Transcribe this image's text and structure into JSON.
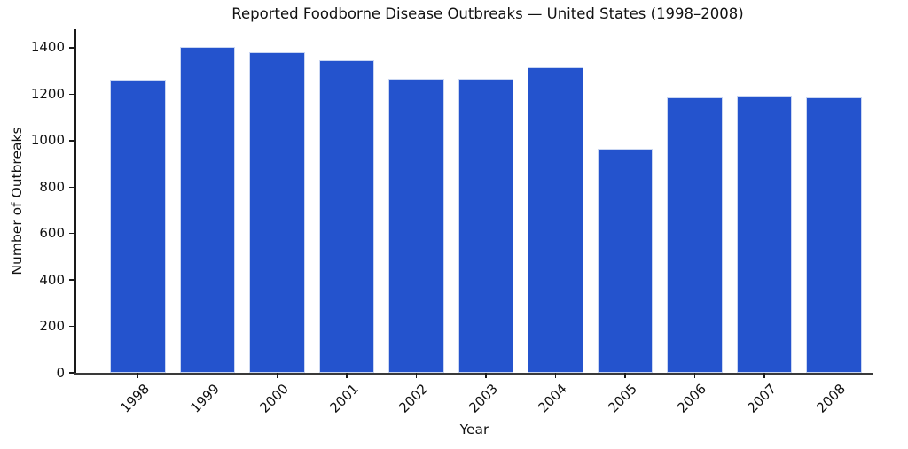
{
  "chart_data": {
    "type": "bar",
    "title": "Reported Foodborne Disease Outbreaks — United States (1998–2008)",
    "xlabel": "Year",
    "ylabel": "Number of Outbreaks",
    "categories": [
      "1998",
      "1999",
      "2000",
      "2001",
      "2002",
      "2003",
      "2004",
      "2005",
      "2006",
      "2007",
      "2008"
    ],
    "values": [
      1263,
      1404,
      1382,
      1345,
      1266,
      1266,
      1317,
      965,
      1187,
      1193,
      1187
    ],
    "yticks": [
      0,
      200,
      400,
      600,
      800,
      1000,
      1200,
      1400
    ],
    "ylim": [
      0,
      1480
    ],
    "grid": false,
    "legend": null,
    "bar_color": "#2453cd",
    "bar_edge_color": "#c9d6f2",
    "axis_color": "#1a1a1a",
    "text_color": "#111111",
    "background_color": "#ffffff"
  }
}
